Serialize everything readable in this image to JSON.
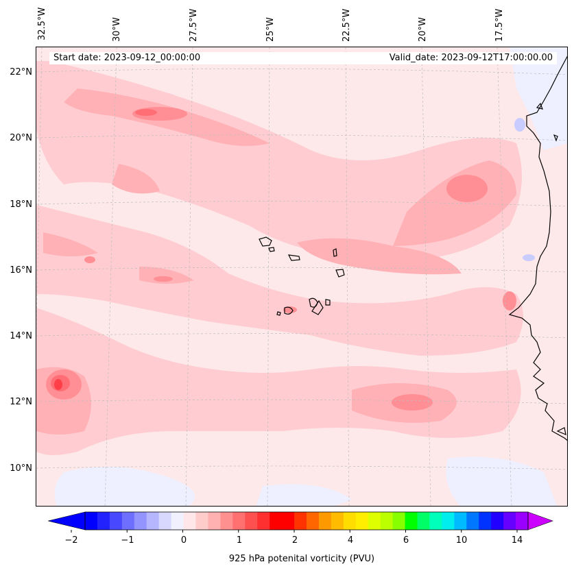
{
  "map": {
    "start_date": "Start date: 2023-09-12_00:00:00",
    "valid_date": "Valid_date: 2023-09-12T17:00:00.00",
    "lon_labels": [
      "32.5°W",
      "30°W",
      "27.5°W",
      "25°W",
      "22.5°W",
      "20°W",
      "17.5°W"
    ],
    "lat_labels": [
      "22°N",
      "20°N",
      "18°N",
      "16°N",
      "14°N",
      "12°N",
      "10°N"
    ],
    "extent": {
      "lon_min": -32.6,
      "lon_max": -15.5,
      "lat_min": 8.9,
      "lat_max": 22.8
    },
    "projection": "lambert-conformal",
    "gridlines": true
  },
  "colorbar": {
    "title": "925 hPa potenital vorticity (PVU)",
    "tick_labels": [
      "−2",
      "−1",
      "0",
      "1",
      "2",
      "4",
      "6",
      "10",
      "14"
    ],
    "extend": "both",
    "colors": [
      "#0000ff",
      "#2222ff",
      "#4848ff",
      "#6e6eff",
      "#9494ff",
      "#b6b6ff",
      "#d8d8ff",
      "#f0f0ff",
      "#ffe6e8",
      "#ffcccc",
      "#ffb0b0",
      "#ff9090",
      "#ff7070",
      "#ff5050",
      "#ff3030",
      "#ff0000",
      "#ff0000",
      "#ff3300",
      "#ff6600",
      "#ff9900",
      "#ffbb00",
      "#ffdd00",
      "#ffee00",
      "#ddff00",
      "#bbff00",
      "#88ff00",
      "#00ff00",
      "#00ff66",
      "#00ffbb",
      "#00eeee",
      "#00bbff",
      "#0077ff",
      "#0033ff",
      "#2200ff",
      "#6600ff",
      "#9900ff"
    ],
    "min_color": "#0000ff",
    "max_color": "#cc00ff"
  }
}
